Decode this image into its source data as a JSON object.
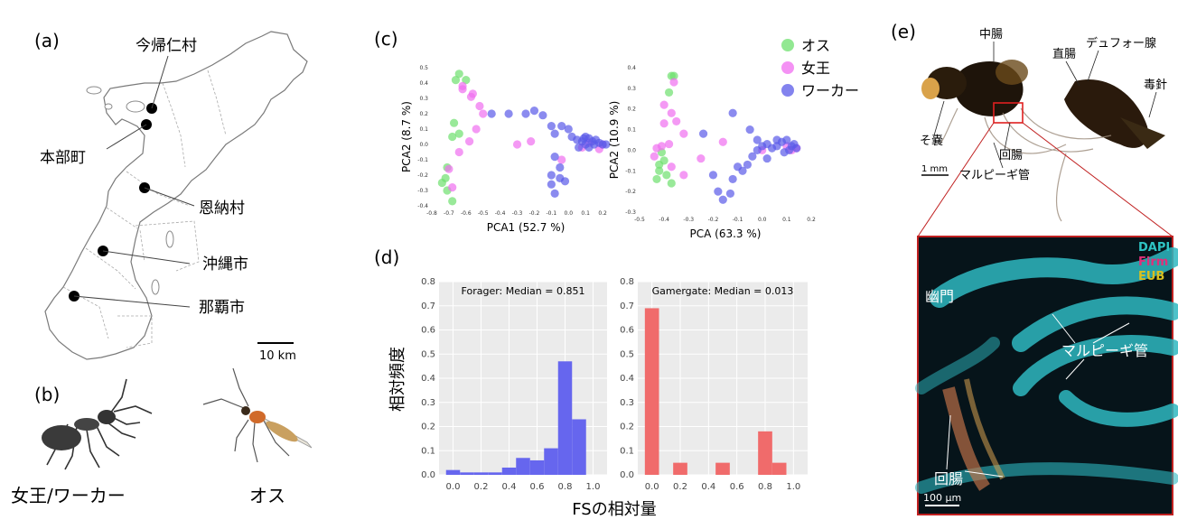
{
  "panels": {
    "a": {
      "label": "(a)",
      "places": [
        "今帰仁村",
        "本部町",
        "恩納村",
        "沖縄市",
        "那覇市"
      ],
      "scale_label": "10 km"
    },
    "b": {
      "label": "(b)",
      "queen_worker": "女王/ワーカー",
      "male": "オス"
    },
    "c": {
      "label": "(c)",
      "legend": [
        {
          "name": "オス",
          "color": "#6ee06e"
        },
        {
          "name": "女王",
          "color": "#f06ef0"
        },
        {
          "name": "ワーカー",
          "color": "#5a5ae8"
        }
      ]
    },
    "d": {
      "label": "(d)",
      "ylabel": "相対頻度",
      "xlabel": "FSの相対量"
    },
    "e": {
      "label": "(e)",
      "photo_labels": [
        "中腸",
        "直腸",
        "デュフォー腺",
        "毒針",
        "そ嚢",
        "回腸",
        "マルピーギ管"
      ],
      "scale_top": "1 mm",
      "fluor_legend": [
        {
          "name": "DAPI",
          "color": "#2ec4c4"
        },
        {
          "name": "Firm",
          "color": "#e0307a"
        },
        {
          "name": "EUB",
          "color": "#d8c020"
        }
      ],
      "fluor_labels": [
        "幽門",
        "マルピーギ管",
        "回腸"
      ],
      "scale_bottom": "100 μm"
    }
  },
  "chart_data": [
    {
      "type": "scatter",
      "xlabel": "PCA1 (52.7 %)",
      "ylabel": "PCA2 (8.7 %)",
      "xlim": [
        -0.8,
        0.3
      ],
      "ylim": [
        -0.4,
        0.5
      ],
      "xticks": [
        -0.8,
        -0.7,
        -0.6,
        -0.5,
        -0.4,
        -0.3,
        -0.2,
        -0.1,
        0.0,
        0.1,
        0.2
      ],
      "yticks": [
        -0.4,
        -0.3,
        -0.2,
        -0.1,
        0.0,
        0.1,
        0.2,
        0.3,
        0.4,
        0.5
      ],
      "series": [
        {
          "name": "オス",
          "points": [
            [
              -0.64,
              0.46
            ],
            [
              -0.66,
              0.42
            ],
            [
              -0.6,
              0.42
            ],
            [
              -0.67,
              0.14
            ],
            [
              -0.64,
              0.07
            ],
            [
              -0.68,
              0.05
            ],
            [
              -0.71,
              -0.15
            ],
            [
              -0.74,
              -0.25
            ],
            [
              -0.71,
              -0.3
            ],
            [
              -0.68,
              -0.37
            ],
            [
              -0.72,
              -0.22
            ]
          ]
        },
        {
          "name": "女王",
          "points": [
            [
              -0.62,
              0.36
            ],
            [
              -0.57,
              0.31
            ],
            [
              -0.52,
              0.25
            ],
            [
              -0.5,
              0.2
            ],
            [
              -0.54,
              0.1
            ],
            [
              -0.58,
              0.02
            ],
            [
              -0.64,
              -0.05
            ],
            [
              -0.7,
              -0.16
            ],
            [
              -0.68,
              -0.28
            ],
            [
              -0.62,
              0.38
            ],
            [
              -0.3,
              0.0
            ],
            [
              -0.22,
              0.02
            ],
            [
              0.08,
              -0.02
            ],
            [
              0.18,
              -0.03
            ],
            [
              0.12,
              0.01
            ],
            [
              0.2,
              0.0
            ],
            [
              -0.04,
              -0.1
            ],
            [
              -0.56,
              0.33
            ]
          ]
        },
        {
          "name": "ワーカー",
          "points": [
            [
              -0.45,
              0.2
            ],
            [
              -0.35,
              0.2
            ],
            [
              -0.25,
              0.2
            ],
            [
              -0.2,
              0.22
            ],
            [
              -0.15,
              0.19
            ],
            [
              -0.1,
              0.12
            ],
            [
              -0.08,
              0.07
            ],
            [
              -0.04,
              0.12
            ],
            [
              0.0,
              0.1
            ],
            [
              0.02,
              0.05
            ],
            [
              0.05,
              0.03
            ],
            [
              0.08,
              0.02
            ],
            [
              0.1,
              0.05
            ],
            [
              0.12,
              0.04
            ],
            [
              0.14,
              0.02
            ],
            [
              0.16,
              0.03
            ],
            [
              0.18,
              0.01
            ],
            [
              0.2,
              0.0
            ],
            [
              0.22,
              0.0
            ],
            [
              0.06,
              -0.02
            ],
            [
              0.1,
              0.0
            ],
            [
              0.12,
              -0.02
            ],
            [
              0.15,
              0.0
            ],
            [
              0.09,
              0.04
            ],
            [
              -0.08,
              -0.08
            ],
            [
              -0.05,
              -0.15
            ],
            [
              -0.1,
              -0.2
            ],
            [
              -0.05,
              -0.22
            ],
            [
              -0.1,
              -0.26
            ],
            [
              -0.08,
              -0.32
            ],
            [
              -0.02,
              -0.24
            ]
          ]
        }
      ]
    },
    {
      "type": "scatter",
      "xlabel": "PCA (63.3 %)",
      "ylabel": "PCA2 (10.9 %)",
      "xlim": [
        -0.5,
        0.2
      ],
      "ylim": [
        -0.3,
        0.4
      ],
      "xticks": [
        -0.5,
        -0.4,
        -0.3,
        -0.2,
        -0.1,
        0.0,
        0.1,
        0.2
      ],
      "yticks": [
        -0.3,
        -0.2,
        -0.1,
        0.0,
        0.1,
        0.2,
        0.3,
        0.4
      ],
      "series": [
        {
          "name": "オス",
          "points": [
            [
              -0.36,
              0.36
            ],
            [
              -0.37,
              0.36
            ],
            [
              -0.38,
              0.28
            ],
            [
              -0.41,
              -0.01
            ],
            [
              -0.4,
              -0.05
            ],
            [
              -0.42,
              -0.1
            ],
            [
              -0.39,
              -0.12
            ],
            [
              -0.43,
              -0.14
            ],
            [
              -0.37,
              -0.16
            ],
            [
              -0.42,
              -0.07
            ]
          ]
        },
        {
          "name": "女王",
          "points": [
            [
              -0.4,
              0.22
            ],
            [
              -0.37,
              0.18
            ],
            [
              -0.4,
              0.13
            ],
            [
              -0.35,
              0.14
            ],
            [
              -0.32,
              0.08
            ],
            [
              -0.41,
              0.02
            ],
            [
              -0.43,
              0.01
            ],
            [
              -0.38,
              0.03
            ],
            [
              -0.44,
              -0.03
            ],
            [
              -0.37,
              -0.08
            ],
            [
              -0.32,
              -0.12
            ],
            [
              -0.25,
              -0.04
            ],
            [
              -0.16,
              0.04
            ],
            [
              0.0,
              0.0
            ],
            [
              0.1,
              0.02
            ],
            [
              0.12,
              0.0
            ],
            [
              0.14,
              0.01
            ],
            [
              -0.36,
              0.33
            ]
          ]
        },
        {
          "name": "ワーカー",
          "points": [
            [
              -0.24,
              0.08
            ],
            [
              -0.2,
              -0.12
            ],
            [
              -0.18,
              -0.2
            ],
            [
              -0.16,
              -0.24
            ],
            [
              -0.13,
              -0.21
            ],
            [
              -0.12,
              -0.14
            ],
            [
              -0.1,
              -0.08
            ],
            [
              -0.08,
              -0.1
            ],
            [
              -0.06,
              -0.07
            ],
            [
              -0.04,
              -0.03
            ],
            [
              -0.02,
              0.0
            ],
            [
              0.0,
              0.02
            ],
            [
              0.02,
              0.03
            ],
            [
              0.04,
              0.01
            ],
            [
              0.06,
              0.02
            ],
            [
              0.08,
              0.04
            ],
            [
              0.1,
              0.05
            ],
            [
              0.12,
              0.02
            ],
            [
              0.14,
              0.01
            ],
            [
              0.13,
              0.03
            ],
            [
              0.11,
              0.0
            ],
            [
              -0.12,
              0.18
            ],
            [
              -0.05,
              0.1
            ],
            [
              0.02,
              -0.04
            ],
            [
              -0.02,
              0.05
            ],
            [
              0.06,
              0.05
            ],
            [
              0.09,
              -0.01
            ]
          ]
        }
      ]
    },
    {
      "type": "bar",
      "title": "Forager: Median = 0.851",
      "bins": [
        0.0,
        0.1,
        0.2,
        0.3,
        0.4,
        0.5,
        0.6,
        0.7,
        0.8,
        0.9
      ],
      "values": [
        0.02,
        0.01,
        0.01,
        0.01,
        0.03,
        0.07,
        0.06,
        0.11,
        0.47,
        0.23
      ],
      "xticks": [
        0.0,
        0.2,
        0.4,
        0.6,
        0.8,
        1.0
      ],
      "ylim": [
        0,
        0.8
      ],
      "yticks": [
        0.0,
        0.1,
        0.2,
        0.3,
        0.4,
        0.5,
        0.6,
        0.7,
        0.8
      ],
      "color": "#6666ee"
    },
    {
      "type": "bar",
      "title": "Gamergate: Median = 0.013",
      "bins": [
        0.0,
        0.1,
        0.2,
        0.3,
        0.4,
        0.5,
        0.6,
        0.7,
        0.8,
        0.9
      ],
      "values": [
        0.69,
        0.0,
        0.05,
        0.0,
        0.0,
        0.05,
        0.0,
        0.0,
        0.18,
        0.05
      ],
      "xticks": [
        0.0,
        0.2,
        0.4,
        0.6,
        0.8,
        1.0
      ],
      "ylim": [
        0,
        0.8
      ],
      "yticks": [
        0.0,
        0.1,
        0.2,
        0.3,
        0.4,
        0.5,
        0.6,
        0.7,
        0.8
      ],
      "color": "#f06b6b"
    }
  ]
}
